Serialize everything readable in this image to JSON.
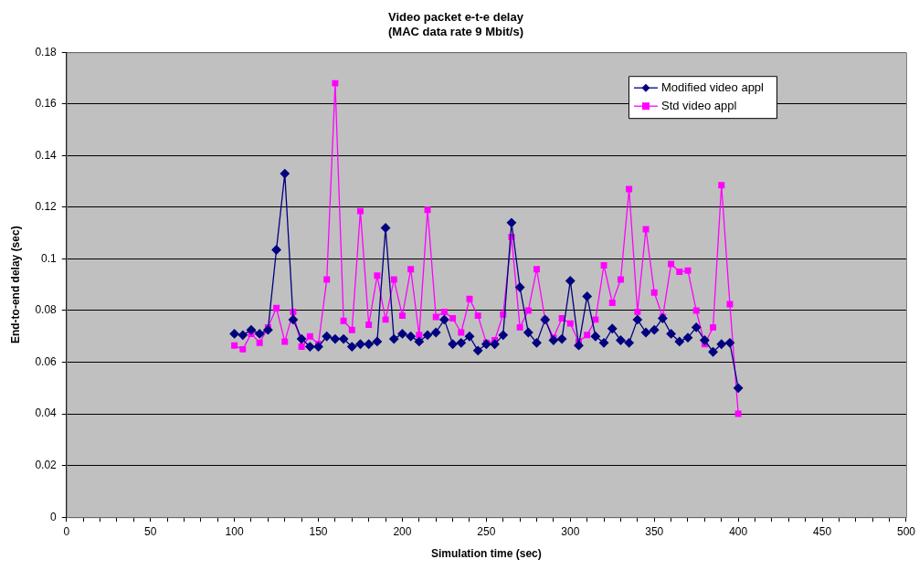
{
  "chart_data": {
    "type": "line",
    "title": "Video packet e-t-e delay\n(MAC data rate 9 Mbit/s)",
    "xlabel": "Simulation time (sec)",
    "ylabel": "End-to-end delay (sec)",
    "x": [
      100,
      105,
      110,
      115,
      120,
      125,
      130,
      135,
      140,
      145,
      150,
      155,
      160,
      165,
      170,
      175,
      180,
      185,
      190,
      195,
      200,
      205,
      210,
      215,
      220,
      225,
      230,
      235,
      240,
      245,
      250,
      255,
      260,
      265,
      270,
      275,
      280,
      285,
      290,
      295,
      300,
      305,
      310,
      315,
      320,
      325,
      330,
      335,
      340,
      345,
      350,
      355,
      360,
      365,
      370,
      375,
      380,
      385,
      390,
      395,
      400
    ],
    "series": [
      {
        "name": "Modified video appl",
        "color": "#000080",
        "marker": "diamond",
        "values": [
          0.071,
          0.0705,
          0.0725,
          0.071,
          0.0725,
          0.1035,
          0.133,
          0.0765,
          0.069,
          0.066,
          0.066,
          0.07,
          0.069,
          0.069,
          0.066,
          0.067,
          0.067,
          0.068,
          0.112,
          0.069,
          0.071,
          0.07,
          0.068,
          0.0705,
          0.0715,
          0.0765,
          0.067,
          0.0675,
          0.07,
          0.0645,
          0.067,
          0.067,
          0.0705,
          0.114,
          0.089,
          0.0715,
          0.0675,
          0.0765,
          0.0685,
          0.069,
          0.0915,
          0.0665,
          0.0855,
          0.07,
          0.0675,
          0.073,
          0.0685,
          0.0675,
          0.0765,
          0.0715,
          0.0725,
          0.077,
          0.071,
          0.068,
          0.0695,
          0.0735,
          0.0685,
          0.064,
          0.067,
          0.0675,
          0.05
        ]
      },
      {
        "name": "Std video appl",
        "color": "#ff00ff",
        "marker": "square",
        "values": [
          0.0665,
          0.065,
          0.071,
          0.0675,
          0.0735,
          0.081,
          0.068,
          0.0795,
          0.066,
          0.07,
          0.067,
          0.092,
          0.168,
          0.076,
          0.0725,
          0.1185,
          0.0745,
          0.0935,
          0.0765,
          0.092,
          0.078,
          0.096,
          0.0705,
          0.119,
          0.0775,
          0.0795,
          0.077,
          0.0715,
          0.0845,
          0.078,
          0.0675,
          0.0685,
          0.0785,
          0.1085,
          0.0735,
          0.08,
          0.096,
          0.0765,
          0.0695,
          0.077,
          0.075,
          0.068,
          0.0705,
          0.0765,
          0.0975,
          0.083,
          0.092,
          0.127,
          0.0795,
          0.1115,
          0.087,
          0.0775,
          0.098,
          0.095,
          0.0955,
          0.08,
          0.067,
          0.0735,
          0.1285,
          0.0825,
          0.04
        ]
      }
    ],
    "xlim": [
      0,
      500
    ],
    "xticks": [
      0,
      {
        "value": 10,
        "label": null
      },
      {
        "value": 20,
        "label": null
      },
      {
        "value": 30,
        "label": null
      },
      {
        "value": 40,
        "label": null
      },
      50,
      {
        "value": 60,
        "label": null
      },
      {
        "value": 70,
        "label": null
      },
      {
        "value": 80,
        "label": null
      },
      {
        "value": 90,
        "label": null
      },
      100,
      {
        "value": 110,
        "label": null
      },
      {
        "value": 120,
        "label": null
      },
      {
        "value": 130,
        "label": null
      },
      {
        "value": 140,
        "label": null
      },
      150,
      {
        "value": 160,
        "label": null
      },
      {
        "value": 170,
        "label": null
      },
      {
        "value": 180,
        "label": null
      },
      {
        "value": 190,
        "label": null
      },
      200,
      {
        "value": 210,
        "label": null
      },
      {
        "value": 220,
        "label": null
      },
      {
        "value": 230,
        "label": null
      },
      {
        "value": 240,
        "label": null
      },
      250,
      {
        "value": 260,
        "label": null
      },
      {
        "value": 270,
        "label": null
      },
      {
        "value": 280,
        "label": null
      },
      {
        "value": 290,
        "label": null
      },
      300,
      {
        "value": 310,
        "label": null
      },
      {
        "value": 320,
        "label": null
      },
      {
        "value": 330,
        "label": null
      },
      {
        "value": 340,
        "label": null
      },
      350,
      {
        "value": 360,
        "label": null
      },
      {
        "value": 370,
        "label": null
      },
      {
        "value": 380,
        "label": null
      },
      {
        "value": 390,
        "label": null
      },
      400,
      {
        "value": 410,
        "label": null
      },
      {
        "value": 420,
        "label": null
      },
      {
        "value": 430,
        "label": null
      },
      {
        "value": 440,
        "label": null
      },
      450,
      {
        "value": 460,
        "label": null
      },
      {
        "value": 470,
        "label": null
      },
      {
        "value": 480,
        "label": null
      },
      {
        "value": 490,
        "label": null
      },
      500
    ],
    "ylim": [
      0,
      0.18
    ],
    "yticks": [
      0,
      0.02,
      0.04,
      0.06,
      0.08,
      0.1,
      0.12,
      0.14,
      0.16,
      0.18
    ],
    "grid": "y",
    "legend": "top right",
    "line_style": "solid"
  }
}
